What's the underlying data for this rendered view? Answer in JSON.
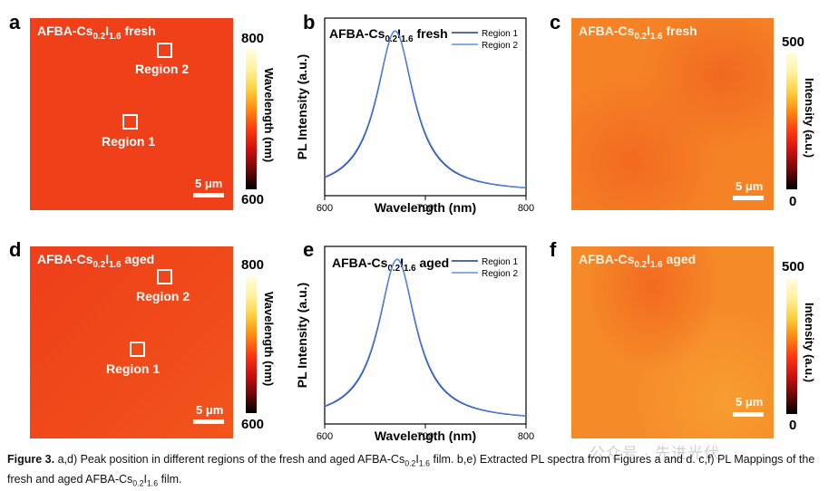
{
  "panels": {
    "a": {
      "label": "a",
      "title_prefix": "AFBA-Cs",
      "sub1": "0.2",
      "mid": "I",
      "sub2": "1.6",
      "state": "fresh",
      "region1": "Region 1",
      "region2": "Region 2",
      "scale": "5 μm",
      "cb_max": "800",
      "cb_min": "600",
      "cb_title": "Wavelength (nm)"
    },
    "b": {
      "label": "b",
      "title_prefix": "AFBA-Cs",
      "sub1": "0.2",
      "mid": "I",
      "sub2": "1.6",
      "state": "fresh"
    },
    "c": {
      "label": "c",
      "title_prefix": "AFBA-Cs",
      "sub1": "0.2",
      "mid": "I",
      "sub2": "1.6",
      "state": "fresh",
      "scale": "5 μm",
      "cb_max": "500",
      "cb_min": "0",
      "cb_title": "Intensity (a.u.)"
    },
    "d": {
      "label": "d",
      "title_prefix": "AFBA-Cs",
      "sub1": "0.2",
      "mid": "I",
      "sub2": "1.6",
      "state": "aged",
      "region1": "Region 1",
      "region2": "Region 2",
      "scale": "5 μm",
      "cb_max": "800",
      "cb_min": "600",
      "cb_title": "Wavelength (nm)"
    },
    "e": {
      "label": "e",
      "title_prefix": "AFBA-Cs",
      "sub1": "0.2",
      "mid": "I",
      "sub2": "1.6",
      "state": "aged"
    },
    "f": {
      "label": "f",
      "title_prefix": "AFBA-Cs",
      "sub1": "0.2",
      "mid": "I",
      "sub2": "1.6",
      "state": "aged",
      "scale": "5 μm",
      "cb_max": "500",
      "cb_min": "0",
      "cb_title": "Intensity (a.u.)"
    }
  },
  "colors": {
    "wavelength_map": "#f0401a",
    "wavelength_map_aged": "#ef4a1a",
    "intensity_map": "#f47a22",
    "intensity_map_aged": "#f58a28",
    "curve_dark": "#1f3a93",
    "curve_light": "#5b8ff0"
  },
  "chart_data": [
    {
      "type": "line",
      "title": "AFBA-Cs0.2I1.6 fresh",
      "xlabel": "Wavelength (nm)",
      "ylabel": "PL Intensity (a.u.)",
      "xlim": [
        600,
        800
      ],
      "ylim": [
        0,
        1.1
      ],
      "xticks": [
        "600",
        "700",
        "800"
      ],
      "legend": "top-right",
      "series": [
        {
          "name": "Region 1",
          "peak": 670,
          "fwhm": 45,
          "baseline": 0.02,
          "amplitude": 1.0
        },
        {
          "name": "Region 2",
          "peak": 670,
          "fwhm": 46,
          "baseline": 0.02,
          "amplitude": 1.0
        }
      ]
    },
    {
      "type": "line",
      "title": "AFBA-Cs0.2I1.6 aged",
      "xlabel": "Wavelength (nm)",
      "ylabel": "PL Intensity (a.u.)",
      "xlim": [
        600,
        800
      ],
      "ylim": [
        0,
        1.1
      ],
      "xticks": [
        "600",
        "700",
        "800"
      ],
      "legend": "top-right",
      "series": [
        {
          "name": "Region 1",
          "peak": 672,
          "fwhm": 45,
          "baseline": 0.02,
          "amplitude": 1.0
        },
        {
          "name": "Region 2",
          "peak": 672,
          "fwhm": 46,
          "baseline": 0.02,
          "amplitude": 1.0
        }
      ]
    }
  ],
  "caption": {
    "fig": "Figure 3.",
    "part1": " a,d) Peak position in different regions of the fresh and aged AFBA-Cs",
    "s1": "0.2",
    "i": "I",
    "s2": "1.6",
    "part2": " film. b,e) Extracted PL spectra from Figures a and d. c,f) PL Mappings of the fresh and aged AFBA-Cs",
    "s3": "0.2",
    "i2": "I",
    "s4": "1.6",
    "part3": " film."
  },
  "watermark": "公众号 · 先进光伏"
}
